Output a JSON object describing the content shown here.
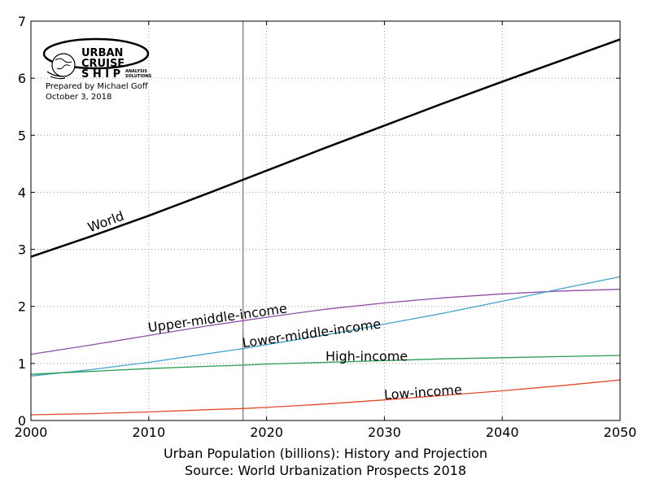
{
  "chart_data": {
    "type": "line",
    "title": "",
    "xlabel": "Urban Population (billions): History and Projection",
    "source": "Source: World Urbanization Prospects 2018",
    "ylabel": "",
    "xlim": [
      2000,
      2050
    ],
    "ylim": [
      0,
      7
    ],
    "x_ticks": [
      2000,
      2010,
      2020,
      2030,
      2040,
      2050
    ],
    "y_ticks": [
      0,
      1,
      2,
      3,
      4,
      5,
      6,
      7
    ],
    "grid": true,
    "reference_line_x": 2018,
    "x": [
      2000,
      2005,
      2010,
      2015,
      2018,
      2020,
      2025,
      2030,
      2035,
      2040,
      2045,
      2050
    ],
    "series": [
      {
        "name": "World",
        "color": "#000000",
        "values": [
          2.87,
          3.22,
          3.59,
          3.98,
          4.22,
          4.38,
          4.78,
          5.17,
          5.56,
          5.94,
          6.31,
          6.68
        ]
      },
      {
        "name": "Upper-middle-income",
        "color": "#8e4fa3",
        "values": [
          1.16,
          1.32,
          1.49,
          1.66,
          1.75,
          1.81,
          1.95,
          2.06,
          2.15,
          2.22,
          2.27,
          2.3
        ]
      },
      {
        "name": "Lower-middle-income",
        "color": "#3fa3c5",
        "values": [
          0.78,
          0.89,
          1.02,
          1.17,
          1.26,
          1.33,
          1.5,
          1.69,
          1.88,
          2.09,
          2.31,
          2.52
        ]
      },
      {
        "name": "High-income",
        "color": "#2a9a55",
        "values": [
          0.81,
          0.86,
          0.91,
          0.95,
          0.97,
          0.99,
          1.02,
          1.05,
          1.08,
          1.1,
          1.12,
          1.14
        ]
      },
      {
        "name": "Low-income",
        "color": "#e04a2c",
        "values": [
          0.1,
          0.12,
          0.15,
          0.19,
          0.21,
          0.23,
          0.29,
          0.36,
          0.44,
          0.52,
          0.61,
          0.71
        ]
      }
    ],
    "labels": [
      {
        "text": "World",
        "x": 2005.0,
        "y": 3.3,
        "angle": -20
      },
      {
        "text": "Upper-middle-income",
        "x": 2010.0,
        "y": 1.55,
        "angle": -8
      },
      {
        "text": "Lower-middle-income",
        "x": 2018.0,
        "y": 1.28,
        "angle": -8
      },
      {
        "text": "High-income",
        "x": 2025.0,
        "y": 1.05,
        "angle": 0
      },
      {
        "text": "Low-income",
        "x": 2030.0,
        "y": 0.37,
        "angle": -4
      }
    ]
  },
  "logo": {
    "line1": "URBAN",
    "line2": "CRUISE",
    "line3": "S H I P",
    "tag1": "ANALYSIS",
    "tag2": "SOLUTIONS",
    "prepared_by": "Prepared by Michael Goff",
    "date": "October 3, 2018"
  }
}
